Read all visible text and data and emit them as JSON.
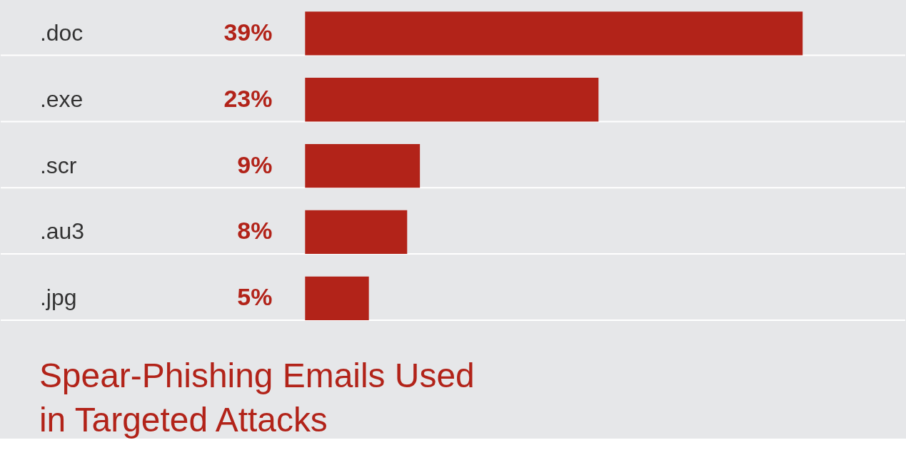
{
  "chart_data": {
    "type": "bar",
    "orientation": "horizontal",
    "title": [
      "Spear-Phishing Emails Used",
      "in Targeted Attacks"
    ],
    "categories": [
      ".doc",
      ".exe",
      ".scr",
      ".au3",
      ".jpg"
    ],
    "values": [
      39,
      23,
      9,
      8,
      5
    ],
    "value_labels": [
      "39%",
      "23%",
      "9%",
      "8%",
      "5%"
    ],
    "color": "#b22319"
  }
}
